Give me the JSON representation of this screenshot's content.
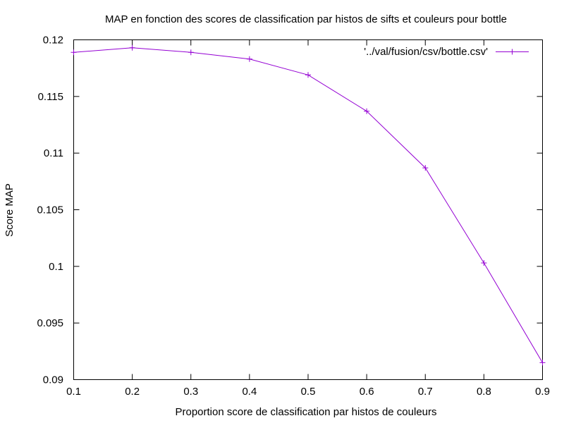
{
  "chart_data": {
    "type": "line",
    "title": "MAP en fonction des scores de classification par histos de sifts et couleurs pour bottle",
    "xlabel": "Proportion score de classification par histos de couleurs",
    "ylabel": "Score MAP",
    "xlim": [
      0.1,
      0.9
    ],
    "ylim": [
      0.09,
      0.12
    ],
    "x_ticks": [
      "0.1",
      "0.2",
      "0.3",
      "0.4",
      "0.5",
      "0.6",
      "0.7",
      "0.8",
      "0.9"
    ],
    "y_ticks": [
      "0.09",
      "0.095",
      "0.1",
      "0.105",
      "0.11",
      "0.115",
      "0.12"
    ],
    "grid": false,
    "legend_position": "top-right",
    "series": [
      {
        "name": "'../val/fusion/csv/bottle.csv'",
        "color": "#9400d3",
        "marker": "plus",
        "x": [
          0.1,
          0.2,
          0.3,
          0.4,
          0.5,
          0.6,
          0.7,
          0.8,
          0.9
        ],
        "y": [
          0.1189,
          0.1193,
          0.1189,
          0.1183,
          0.1169,
          0.1137,
          0.1087,
          0.1003,
          0.0915
        ]
      }
    ]
  }
}
